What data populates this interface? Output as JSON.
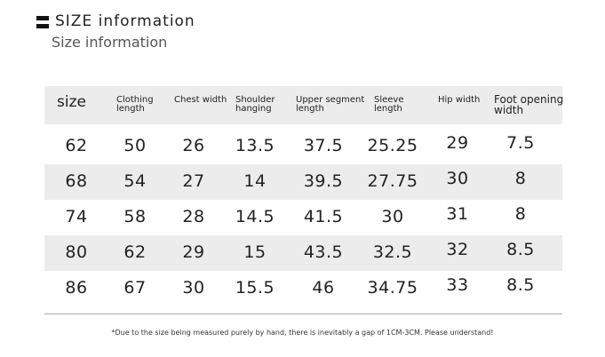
{
  "header": {
    "title": "SIZE information",
    "subtitle": "Size information"
  },
  "table": {
    "columns": [
      "size",
      "Clothing length",
      "Chest width",
      "Shoulder hanging",
      "Upper segment length",
      "Sleeve length",
      "Hip width",
      "Foot opening width"
    ],
    "rows": [
      [
        62,
        50,
        26,
        13.5,
        37.5,
        25.25,
        29,
        7.5
      ],
      [
        68,
        54,
        27,
        14,
        39.5,
        27.75,
        30,
        8
      ],
      [
        74,
        58,
        28,
        14.5,
        41.5,
        30,
        31,
        8
      ],
      [
        80,
        62,
        29,
        15,
        43.5,
        32.5,
        32,
        8.5
      ],
      [
        86,
        67,
        30,
        15.5,
        46,
        34.75,
        33,
        8.5
      ]
    ]
  },
  "footnote": "*Due to the size being measured purely by hand, there is inevitably a gap of 1CM-3CM. Please understand!"
}
